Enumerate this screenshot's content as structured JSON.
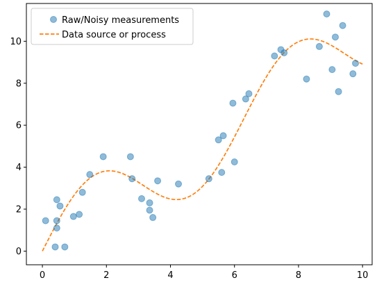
{
  "chart_data": {
    "type": "scatter",
    "title": "",
    "xlabel": "",
    "ylabel": "",
    "xlim": [
      -0.5,
      10.3
    ],
    "ylim": [
      -0.65,
      11.8
    ],
    "xticks": [
      0,
      2,
      4,
      6,
      8,
      10
    ],
    "yticks": [
      0,
      2,
      4,
      6,
      8,
      10
    ],
    "grid": false,
    "legend_position": "top-left",
    "series": [
      {
        "name": "Raw/Noisy measurements",
        "kind": "scatter",
        "color": "#1f77b4",
        "points": [
          [
            0.1,
            1.45
          ],
          [
            0.4,
            0.2
          ],
          [
            0.45,
            2.45
          ],
          [
            0.45,
            1.1
          ],
          [
            0.45,
            1.45
          ],
          [
            0.55,
            2.15
          ],
          [
            0.7,
            0.2
          ],
          [
            0.97,
            1.65
          ],
          [
            1.15,
            1.75
          ],
          [
            1.25,
            2.8
          ],
          [
            1.48,
            3.65
          ],
          [
            1.9,
            4.5
          ],
          [
            2.75,
            4.5
          ],
          [
            2.8,
            3.45
          ],
          [
            3.1,
            2.5
          ],
          [
            3.35,
            2.3
          ],
          [
            3.35,
            1.95
          ],
          [
            3.45,
            1.6
          ],
          [
            3.6,
            3.35
          ],
          [
            4.25,
            3.2
          ],
          [
            5.2,
            3.45
          ],
          [
            5.5,
            5.3
          ],
          [
            5.6,
            3.75
          ],
          [
            5.65,
            5.5
          ],
          [
            5.95,
            7.05
          ],
          [
            6.0,
            4.25
          ],
          [
            6.35,
            7.25
          ],
          [
            6.45,
            7.5
          ],
          [
            7.25,
            9.3
          ],
          [
            7.45,
            9.6
          ],
          [
            7.55,
            9.45
          ],
          [
            8.25,
            8.2
          ],
          [
            8.65,
            9.75
          ],
          [
            8.88,
            11.3
          ],
          [
            9.05,
            8.65
          ],
          [
            9.15,
            10.2
          ],
          [
            9.25,
            7.6
          ],
          [
            9.38,
            10.75
          ],
          [
            9.7,
            8.45
          ],
          [
            9.78,
            8.95
          ]
        ]
      },
      {
        "name": "Data source or process",
        "kind": "line",
        "style": "dashed",
        "color": "#ff7f0e",
        "function": "x + 2*sin(x)",
        "x_range": [
          0,
          10
        ]
      }
    ]
  }
}
